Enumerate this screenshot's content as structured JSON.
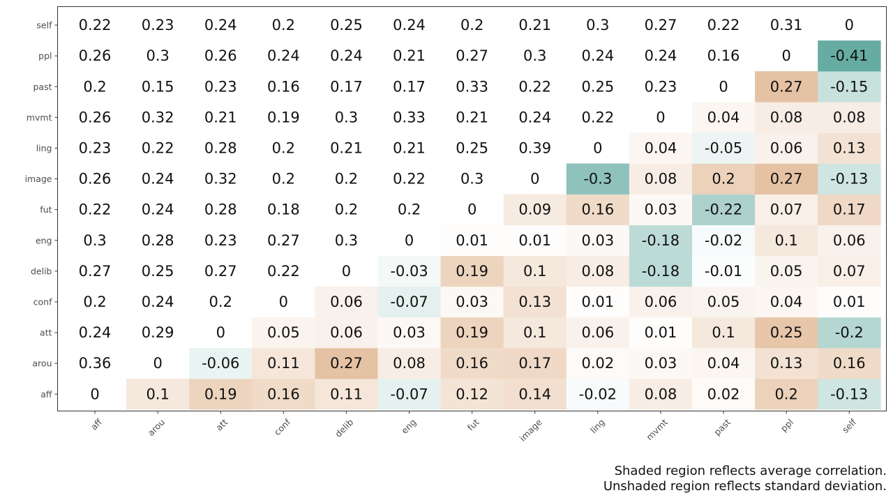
{
  "chart_data": {
    "type": "heatmap",
    "title": "",
    "xlabel": "",
    "ylabel": "",
    "x_categories": [
      "aff",
      "arou",
      "att",
      "conf",
      "delib",
      "eng",
      "fut",
      "image",
      "ling",
      "mvmt",
      "past",
      "ppl",
      "self"
    ],
    "y_categories": [
      "aff",
      "arou",
      "att",
      "conf",
      "delib",
      "eng",
      "fut",
      "image",
      "ling",
      "mvmt",
      "past",
      "ppl",
      "self"
    ],
    "matrix": [
      [
        "0",
        "0.1",
        "0.19",
        "0.16",
        "0.11",
        "-0.07",
        "0.12",
        "0.14",
        "-0.02",
        "0.08",
        "0.02",
        "0.2",
        "-0.13"
      ],
      [
        "0.36",
        "0",
        "-0.06",
        "0.11",
        "0.27",
        "0.08",
        "0.16",
        "0.17",
        "0.02",
        "0.03",
        "0.04",
        "0.13",
        "0.16"
      ],
      [
        "0.24",
        "0.29",
        "0",
        "0.05",
        "0.06",
        "0.03",
        "0.19",
        "0.1",
        "0.06",
        "0.01",
        "0.1",
        "0.25",
        "-0.2"
      ],
      [
        "0.2",
        "0.24",
        "0.2",
        "0",
        "0.06",
        "-0.07",
        "0.03",
        "0.13",
        "0.01",
        "0.06",
        "0.05",
        "0.04",
        "0.01"
      ],
      [
        "0.27",
        "0.25",
        "0.27",
        "0.22",
        "0",
        "-0.03",
        "0.19",
        "0.1",
        "0.08",
        "-0.18",
        "-0.01",
        "0.05",
        "0.07"
      ],
      [
        "0.3",
        "0.28",
        "0.23",
        "0.27",
        "0.3",
        "0",
        "0.01",
        "0.01",
        "0.03",
        "-0.18",
        "-0.02",
        "0.1",
        "0.06"
      ],
      [
        "0.22",
        "0.24",
        "0.28",
        "0.18",
        "0.2",
        "0.2",
        "0",
        "0.09",
        "0.16",
        "0.03",
        "-0.22",
        "0.07",
        "0.17"
      ],
      [
        "0.26",
        "0.24",
        "0.32",
        "0.2",
        "0.2",
        "0.22",
        "0.3",
        "0",
        "-0.3",
        "0.08",
        "0.2",
        "0.27",
        "-0.13"
      ],
      [
        "0.23",
        "0.22",
        "0.28",
        "0.2",
        "0.21",
        "0.21",
        "0.25",
        "0.39",
        "0",
        "0.04",
        "-0.05",
        "0.06",
        "0.13"
      ],
      [
        "0.26",
        "0.32",
        "0.21",
        "0.19",
        "0.3",
        "0.33",
        "0.21",
        "0.24",
        "0.22",
        "0",
        "0.04",
        "0.08",
        "0.08"
      ],
      [
        "0.2",
        "0.15",
        "0.23",
        "0.16",
        "0.17",
        "0.17",
        "0.33",
        "0.22",
        "0.25",
        "0.23",
        "0",
        "0.27",
        "-0.15"
      ],
      [
        "0.26",
        "0.3",
        "0.26",
        "0.24",
        "0.24",
        "0.21",
        "0.27",
        "0.3",
        "0.24",
        "0.24",
        "0.16",
        "0",
        "-0.41"
      ],
      [
        "0.22",
        "0.23",
        "0.24",
        "0.2",
        "0.25",
        "0.24",
        "0.2",
        "0.21",
        "0.3",
        "0.27",
        "0.22",
        "0.31",
        "0"
      ]
    ],
    "shading": "cells right of the diagonal are shaded by value; diagonal and left-of-diagonal cells are unshaded",
    "colors": {
      "positive": "#d8a273",
      "negative": "#66aca3",
      "neutral": "#ffffff",
      "frame": "#333333",
      "tick": "#4d4d4d"
    },
    "grid": false,
    "legend": "none"
  },
  "caption": {
    "line1": "Shaded region reflects average correlation.",
    "line2": "Unshaded region reflects standard deviation."
  }
}
